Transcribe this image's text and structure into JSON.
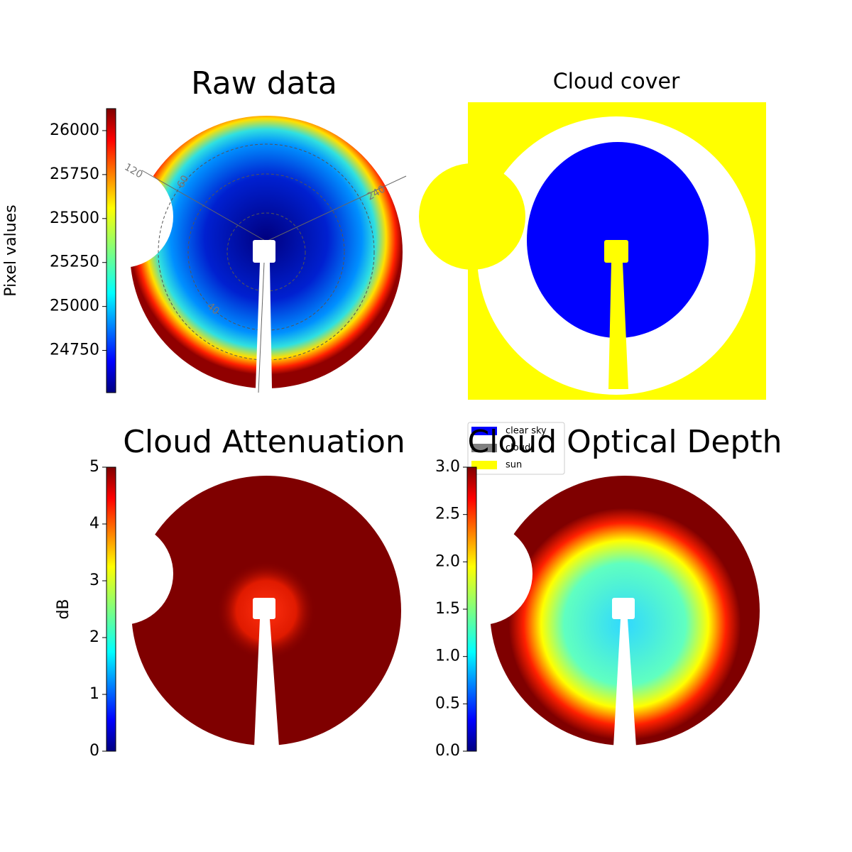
{
  "chart_data": [
    {
      "type": "image",
      "title": "Raw data",
      "colormap": "jet",
      "colorbar_label": "Pixel values",
      "ylim": [
        24510,
        26125
      ],
      "yticks": [
        24750,
        25000,
        25250,
        25500,
        25750,
        26000
      ],
      "polar_labels": [
        "120",
        "60",
        "240",
        "40"
      ]
    },
    {
      "type": "image",
      "title": "Cloud cover",
      "series": [
        {
          "name": "clear sky",
          "color": "#0000ff"
        },
        {
          "name": "cloud",
          "color": "#808080"
        },
        {
          "name": "sun",
          "color": "#ffff00"
        }
      ]
    },
    {
      "type": "image",
      "title": "Cloud Attenuation",
      "colormap": "jet",
      "colorbar_label": "dB",
      "ylim": [
        0,
        5
      ],
      "yticks": [
        0,
        1,
        2,
        3,
        4,
        5
      ]
    },
    {
      "type": "image",
      "title": "Cloud Optical Depth",
      "colormap": "jet",
      "ylim": [
        0,
        3
      ],
      "yticks": [
        {
          "value": 0,
          "label": "0.0"
        },
        0.5,
        {
          "value": 1,
          "label": "1.0"
        },
        1.5,
        {
          "value": 2,
          "label": "2.0"
        },
        2.5,
        {
          "value": 3,
          "label": "3.0"
        }
      ]
    }
  ]
}
